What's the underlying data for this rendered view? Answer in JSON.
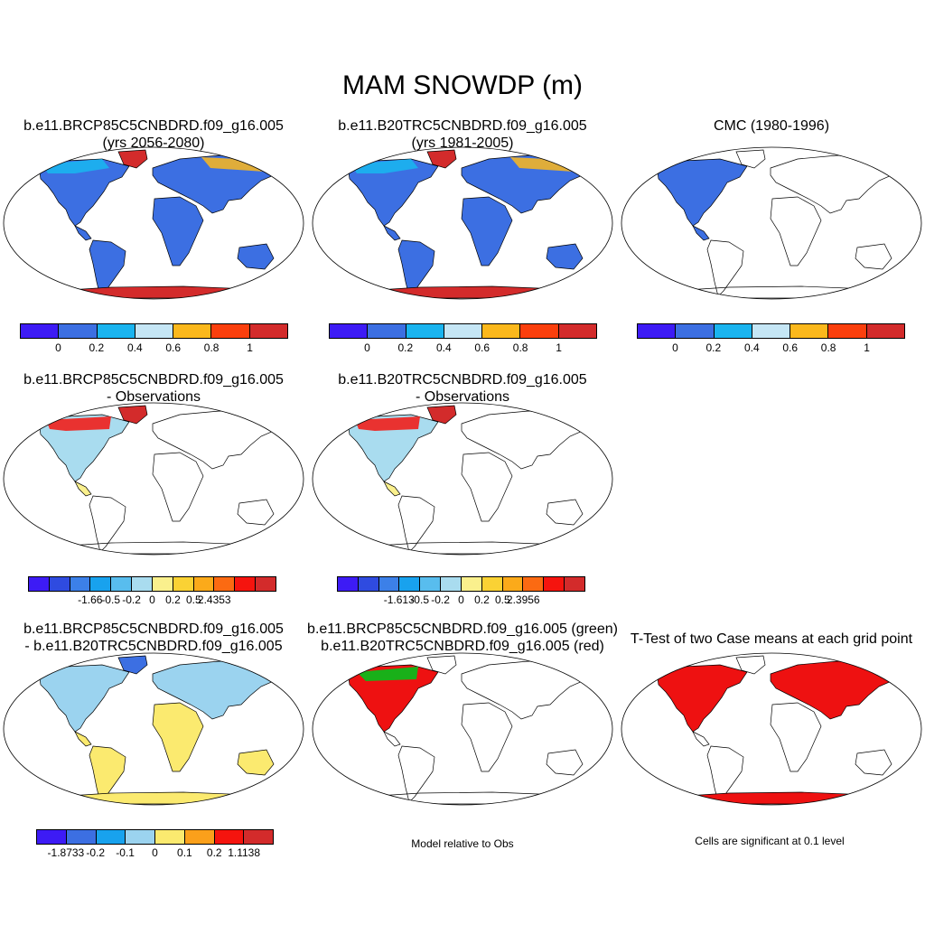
{
  "figure": {
    "title": "MAM SNOWDP (m)"
  },
  "panels": [
    {
      "id": "p1",
      "title1": "b.e11.BRCP85C5CNBDRD.f09_g16.005",
      "title2": "(yrs 2056-2080)",
      "fill": "full"
    },
    {
      "id": "p2",
      "title1": "b.e11.B20TRC5CNBDRD.f09_g16.005",
      "title2": "(yrs 1981-2005)",
      "fill": "full"
    },
    {
      "id": "p3",
      "title1": "",
      "title2": "CMC (1980-1996)",
      "fill": "na"
    },
    {
      "id": "p4",
      "title1": "b.e11.BRCP85C5CNBDRD.f09_g16.005",
      "title2": "- Observations",
      "fill": "diffobs"
    },
    {
      "id": "p5",
      "title1": "b.e11.B20TRC5CNBDRD.f09_g16.005",
      "title2": "- Observations",
      "fill": "diffobs"
    },
    {
      "id": "p6",
      "title1": "b.e11.BRCP85C5CNBDRD.f09_g16.005",
      "title2": "- b.e11.B20TRC5CNBDRD.f09_g16.005",
      "fill": "diff"
    },
    {
      "id": "p7",
      "title1": "b.e11.BRCP85C5CNBDRD.f09_g16.005 (green)",
      "title2": "b.e11.B20TRC5CNBDRD.f09_g16.005 (red)",
      "fill": "compare"
    },
    {
      "id": "p8",
      "title1": "T-Test of two Case means at each grid point",
      "title2": "",
      "fill": "ttest"
    }
  ],
  "colorbars": {
    "snow": {
      "colors": [
        "#3d1bf5",
        "#3c6fe2",
        "#1ab4ef",
        "#c5e6f5",
        "#fbb81c",
        "#fb3f0d",
        "#d32b2b"
      ],
      "labels": [
        "0",
        "0.2",
        "0.4",
        "0.6",
        "0.8",
        "1"
      ]
    },
    "obs1": {
      "colors": [
        "#3d1bf5",
        "#2f4be0",
        "#3c80e8",
        "#18a2ee",
        "#58bdee",
        "#a9dcef",
        "#faf08d",
        "#fad234",
        "#fbaa1a",
        "#fb6a12",
        "#f5140e",
        "#d32b2b"
      ],
      "labels": [
        "-1.66",
        "-0.5",
        "-0.2",
        "0",
        "0.2",
        "0.5",
        "2.4353"
      ]
    },
    "obs2": {
      "colors": [
        "#3d1bf5",
        "#2f4be0",
        "#3c80e8",
        "#18a2ee",
        "#58bdee",
        "#a9dcef",
        "#faf08d",
        "#fad234",
        "#fbaa1a",
        "#fb6a12",
        "#f5140e",
        "#d32b2b"
      ],
      "labels": [
        "-1.613",
        "-0.5",
        "-0.2",
        "0",
        "0.2",
        "0.5",
        "2.3956"
      ]
    },
    "diff": {
      "colors": [
        "#3d1bf5",
        "#3c6fe2",
        "#18a2ee",
        "#9bd3ef",
        "#fbea6f",
        "#fba01b",
        "#f5140e",
        "#d32b2b"
      ],
      "labels": [
        "-1.8733",
        "-0.2",
        "-0.1",
        "0",
        "0.1",
        "0.2",
        "1.1138"
      ]
    }
  },
  "notes": {
    "compare": "Model relative to Obs",
    "ttest": "Cells are significant at 0.1 level"
  },
  "map_colors": {
    "land_snow": "#3c6fe2",
    "antarctica": "#d32b2b",
    "greenland": "#d32b2b",
    "diff_positive": "#fbea6f",
    "diff_negative": "#9bd3ef",
    "ttest_sig": "#ee1111",
    "compare_green": "#19b019",
    "compare_red": "#ee1111"
  }
}
